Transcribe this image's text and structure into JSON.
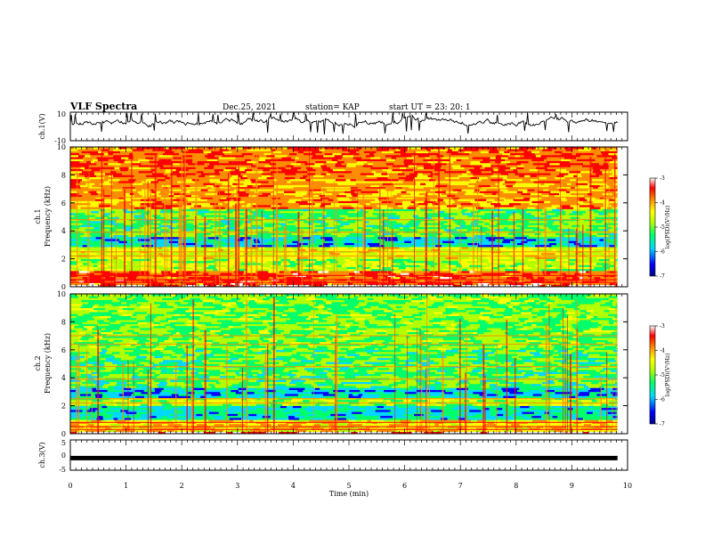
{
  "header": {
    "title": "VLF Spectra",
    "date": "Dec.25, 2021",
    "station": "station= KAP",
    "start": "start  UT  =   23: 20: 1"
  },
  "chart_data": [
    {
      "type": "line",
      "ylabel": "ch.1(V)",
      "ylim": [
        -10,
        10
      ],
      "yticks": [
        "10",
        "-10"
      ],
      "xlim": [
        0,
        10
      ],
      "note": "broadband voltage waveform, roughly 0 to +7 V with spikes"
    },
    {
      "type": "heatmap",
      "ylabel_top": "ch.1",
      "ylabel": "Frequency (kHz)",
      "ylim": [
        0,
        10
      ],
      "yticks": [
        "0",
        "2",
        "4",
        "6",
        "8",
        "10"
      ],
      "xlim": [
        0,
        10
      ],
      "colorbar": {
        "label": "log(PSD)(V²/Hz)",
        "range": [
          -7,
          -3
        ],
        "ticks": [
          "-3",
          "-4",
          "-5",
          "-6",
          "-7"
        ]
      }
    },
    {
      "type": "heatmap",
      "ylabel_top": "ch.2",
      "ylabel": "Frequency (kHz)",
      "ylim": [
        0,
        10
      ],
      "yticks": [
        "0",
        "2",
        "4",
        "6",
        "8",
        "10"
      ],
      "xlim": [
        0,
        10
      ],
      "colorbar": {
        "label": "log(PSD)(V²/Hz)",
        "range": [
          -7,
          -3
        ],
        "ticks": [
          "-3",
          "-4",
          "-5",
          "-6",
          "-7"
        ]
      }
    },
    {
      "type": "line",
      "ylabel": "ch.3(V)",
      "ylim": [
        -5,
        5
      ],
      "yticks": [
        "5",
        "0",
        "-5"
      ],
      "xlim": [
        0,
        10
      ],
      "note": "flat thick trace near -1 V"
    }
  ],
  "xaxis": {
    "label": "Time  (min)",
    "ticks": [
      "0",
      "1",
      "2",
      "3",
      "4",
      "5",
      "6",
      "7",
      "8",
      "9",
      "10"
    ]
  },
  "colors": {
    "scale": [
      "#00008a",
      "#0000ff",
      "#00d7ff",
      "#00ff6a",
      "#b4ff00",
      "#ffff00",
      "#ff8c00",
      "#ff0000",
      "#ffffff"
    ]
  }
}
